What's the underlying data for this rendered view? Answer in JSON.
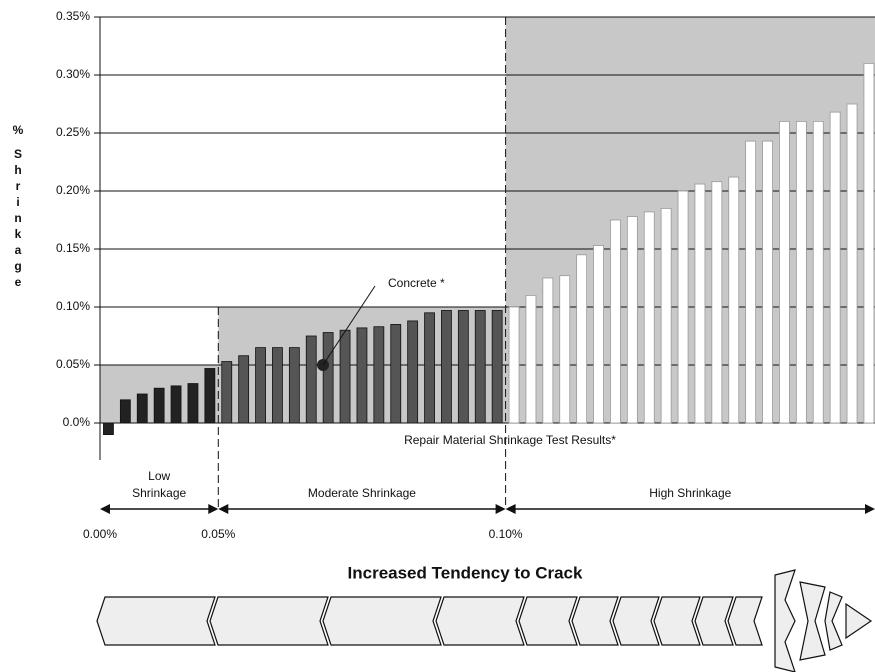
{
  "chart_data": {
    "type": "bar",
    "y_label": "% Shrinkage",
    "x_label": "Repair Material Shrinkage Test Results*",
    "title": "Increased Tendency to Crack",
    "values": [
      -0.01,
      0.02,
      0.025,
      0.03,
      0.032,
      0.034,
      0.047,
      0.053,
      0.058,
      0.065,
      0.065,
      0.065,
      0.075,
      0.078,
      0.08,
      0.082,
      0.083,
      0.085,
      0.088,
      0.095,
      0.097,
      0.097,
      0.097,
      0.097,
      0.1,
      0.11,
      0.125,
      0.127,
      0.145,
      0.153,
      0.175,
      0.178,
      0.182,
      0.185,
      0.2,
      0.206,
      0.208,
      0.212,
      0.243,
      0.243,
      0.26,
      0.26,
      0.26,
      0.268,
      0.275,
      0.31
    ],
    "ylim": [
      -0.01,
      0.35
    ],
    "yticks": [
      {
        "value": 0,
        "label": "0.0%"
      },
      {
        "value": 0.05,
        "label": "0.05%"
      },
      {
        "value": 0.1,
        "label": "0.10%"
      },
      {
        "value": 0.15,
        "label": "0.15%"
      },
      {
        "value": 0.2,
        "label": "0.20%"
      },
      {
        "value": 0.25,
        "label": "0.25%"
      },
      {
        "value": 0.3,
        "label": "0.30%"
      },
      {
        "value": 0.35,
        "label": "0.35%"
      }
    ],
    "grid": true,
    "zones": [
      {
        "name": "Low Shrinkage",
        "range": [
          {
            "value": 0,
            "label": "0.00%"
          },
          {
            "value": 0.05,
            "label": "0.05%"
          }
        ],
        "bar_color": "#222222",
        "shade_color": "#c8c8c8"
      },
      {
        "name": "Moderate Shrinkage",
        "range": [
          {
            "value": 0.05,
            "label": "0.05%"
          },
          {
            "value": 0.1,
            "label": "0.10%"
          }
        ],
        "bar_color": "#555555",
        "shade_color": "#c8c8c8"
      },
      {
        "name": "High Shrinkage",
        "range": [
          {
            "value": 0.1,
            "label": "0.10%"
          },
          {
            "value": 0.35
          }
        ],
        "bar_color": "#ffffff",
        "shade_color": "#c8c8c8"
      }
    ],
    "annotation": {
      "label": "Concrete *",
      "value": 0.05
    }
  }
}
